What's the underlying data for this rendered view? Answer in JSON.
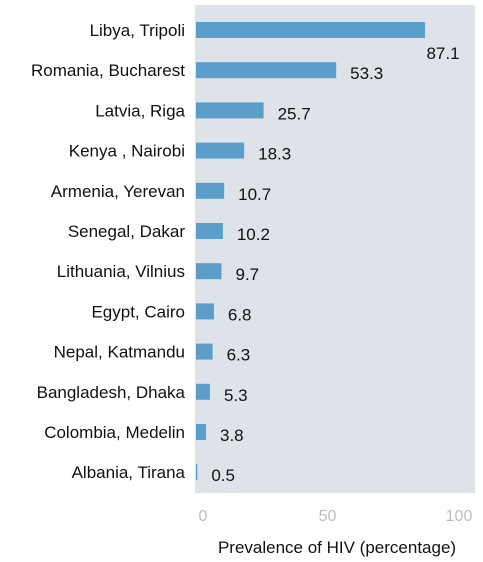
{
  "chart_data": {
    "type": "bar",
    "orientation": "horizontal",
    "categories": [
      "Libya, Tripoli",
      "Romania, Bucharest",
      "Latvia, Riga",
      "Kenya , Nairobi",
      "Armenia, Yerevan",
      "Senegal, Dakar",
      "Lithuania, Vilnius",
      "Egypt, Cairo",
      "Nepal, Katmandu",
      "Bangladesh, Dhaka",
      "Colombia, Medelin",
      "Albania, Tirana"
    ],
    "values": [
      87.1,
      53.3,
      25.7,
      18.3,
      10.7,
      10.2,
      9.7,
      6.8,
      6.3,
      5.3,
      3.8,
      0.5
    ],
    "value_labels": [
      "87.1",
      "53.3",
      "25.7",
      "18.3",
      "10.7",
      "10.2",
      "9.7",
      "6.8",
      "6.3",
      "5.3",
      "3.8",
      "0.5"
    ],
    "xlabel": "Prevalence of HIV (percentage)",
    "ylabel": "",
    "xlim": [
      0,
      100
    ],
    "xticks": [
      0,
      50,
      100
    ],
    "xtick_labels": [
      "0",
      "50",
      "100"
    ],
    "grid": false,
    "legend": "none",
    "colors": {
      "bar": "#5b9ec9",
      "plot_background": "#dde3e8",
      "tick_text": "#b9bec3",
      "text": "#111111"
    }
  }
}
